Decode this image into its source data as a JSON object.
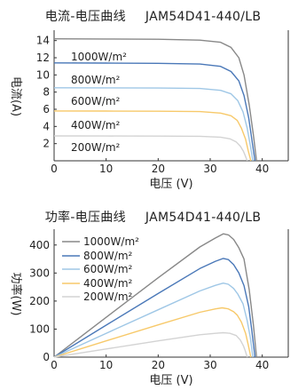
{
  "chart_data": [
    {
      "id": "iv",
      "type": "line",
      "title": "电流-电压曲线 JAM54D41-440/LB",
      "xlabel": "电压 (V)",
      "ylabel": "电流(A)",
      "xlim": [
        0,
        45
      ],
      "ylim": [
        0,
        15
      ],
      "xticks": [
        0,
        10,
        20,
        30,
        40
      ],
      "yticks": [
        2,
        4,
        6,
        8,
        10,
        12,
        14
      ],
      "grid": false,
      "legend": "inline",
      "series": [
        {
          "name": "1000W/m²",
          "color": "#888888",
          "x": [
            0,
            10,
            20,
            28,
            32,
            34,
            35.5,
            36.5,
            37.5,
            38.3,
            38.9
          ],
          "y": [
            14.2,
            14.18,
            14.15,
            14.05,
            13.8,
            13.2,
            12.0,
            10.0,
            6.5,
            3.0,
            0
          ]
        },
        {
          "name": "800W/m²",
          "color": "#4a78b8",
          "x": [
            0,
            10,
            20,
            28,
            32,
            34,
            35.5,
            36.5,
            37.4,
            38.0,
            38.6
          ],
          "y": [
            11.4,
            11.38,
            11.35,
            11.27,
            11.0,
            10.4,
            9.3,
            7.6,
            5.0,
            2.5,
            0
          ]
        },
        {
          "name": "600W/m²",
          "color": "#9fc7e6",
          "x": [
            0,
            10,
            20,
            28,
            32,
            34,
            35.3,
            36.3,
            37.1,
            37.7,
            38.2
          ],
          "y": [
            8.5,
            8.49,
            8.47,
            8.42,
            8.2,
            7.8,
            7.0,
            5.7,
            3.8,
            1.8,
            0
          ]
        },
        {
          "name": "400W/m²",
          "color": "#f7c96a",
          "x": [
            0,
            10,
            20,
            28,
            32,
            34,
            35.2,
            36.0,
            36.8,
            37.3,
            37.8
          ],
          "y": [
            5.8,
            5.79,
            5.77,
            5.73,
            5.55,
            5.25,
            4.7,
            3.8,
            2.5,
            1.2,
            0
          ]
        },
        {
          "name": "200W/m²",
          "color": "#d3d3d3",
          "x": [
            0,
            10,
            20,
            28,
            32,
            33.8,
            35.0,
            35.8,
            36.4,
            36.8,
            37.1
          ],
          "y": [
            2.9,
            2.89,
            2.88,
            2.85,
            2.75,
            2.55,
            2.2,
            1.7,
            1.1,
            0.5,
            0
          ]
        }
      ],
      "texts": {
        "title": "电流-电压曲线",
        "model": "JAM54D41-440/LB",
        "xlabel": "电压 (V)",
        "ylabel": "电流(A)"
      }
    },
    {
      "id": "pv",
      "type": "line",
      "title": "功率-电压曲线 JAM54D41-440/LB",
      "xlabel": "电压 (V)",
      "ylabel": "功率(W)",
      "xlim": [
        0,
        45
      ],
      "ylim": [
        0,
        450
      ],
      "xticks": [
        0,
        10,
        20,
        30,
        40
      ],
      "yticks": [
        0,
        100,
        200,
        300,
        400
      ],
      "grid": false,
      "legend": "top-left",
      "series": [
        {
          "name": "1000W/m²",
          "color": "#888888",
          "x": [
            0,
            10,
            20,
            28,
            31,
            32.5,
            33.5,
            34.5,
            35.5,
            36.5,
            37.5,
            38.3,
            38.9
          ],
          "y": [
            0,
            142,
            283,
            393,
            425,
            440,
            436,
            420,
            390,
            350,
            240,
            115,
            0
          ]
        },
        {
          "name": "800W/m²",
          "color": "#4a78b8",
          "x": [
            0,
            10,
            20,
            28,
            31,
            32.5,
            33.5,
            34.5,
            35.5,
            36.5,
            37.4,
            38.0,
            38.6
          ],
          "y": [
            0,
            114,
            227,
            316,
            342,
            352,
            348,
            330,
            300,
            255,
            180,
            95,
            0
          ]
        },
        {
          "name": "600W/m²",
          "color": "#9fc7e6",
          "x": [
            0,
            10,
            20,
            28,
            31,
            32.5,
            33.5,
            34.5,
            35.3,
            36.3,
            37.1,
            37.7,
            38.2
          ],
          "y": [
            0,
            85,
            169,
            236,
            256,
            264,
            260,
            245,
            225,
            190,
            130,
            70,
            0
          ]
        },
        {
          "name": "400W/m²",
          "color": "#f7c96a",
          "x": [
            0,
            10,
            20,
            28,
            31,
            32.3,
            33.5,
            34.5,
            35.2,
            36.0,
            36.8,
            37.3,
            37.8
          ],
          "y": [
            0,
            58,
            115,
            160,
            172,
            176,
            172,
            162,
            150,
            125,
            85,
            45,
            0
          ]
        },
        {
          "name": "200W/m²",
          "color": "#d3d3d3",
          "x": [
            0,
            10,
            20,
            28,
            31,
            32.5,
            33.8,
            35.0,
            35.8,
            36.4,
            36.8,
            37.1
          ],
          "y": [
            0,
            29,
            58,
            80,
            85,
            87,
            85,
            77,
            61,
            40,
            19,
            0
          ]
        }
      ],
      "texts": {
        "title": "功率-电压曲线",
        "model": "JAM54D41-440/LB",
        "xlabel": "电压 (V)",
        "ylabel": "功率(W)"
      }
    }
  ]
}
